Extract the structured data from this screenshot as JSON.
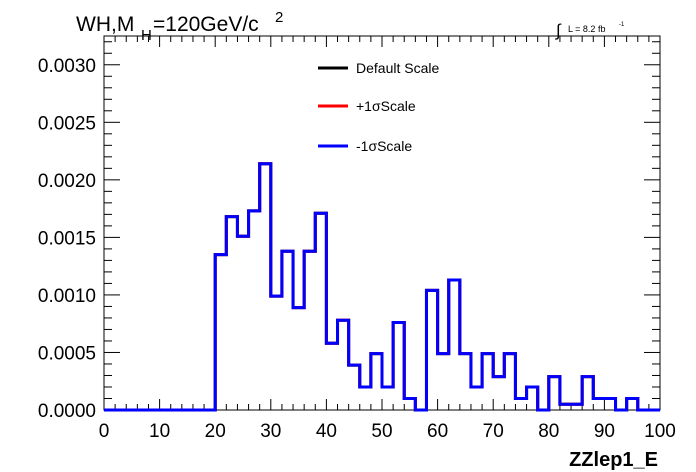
{
  "chart_data": {
    "type": "line",
    "title": {
      "main": "WH,M",
      "sub": "H",
      "rest": "=120GeV/c",
      "sup": "2"
    },
    "lumi": {
      "integral": "∫",
      "text": "L = 8.2 fb",
      "sup": "-1"
    },
    "xlabel": "ZZlep1_E",
    "xlim": [
      0,
      100
    ],
    "ylim": [
      0,
      0.00325
    ],
    "x_ticks": [
      "0",
      "10",
      "20",
      "30",
      "40",
      "50",
      "60",
      "70",
      "80",
      "90",
      "100"
    ],
    "y_ticks": [
      "0.0000",
      "0.0005",
      "0.0010",
      "0.0015",
      "0.0020",
      "0.0025",
      "0.0030"
    ],
    "bin_width": 2,
    "series": [
      {
        "name": "Default Scale",
        "color": "#000000"
      },
      {
        "name": "+1σScale",
        "color": "#ff0000"
      },
      {
        "name": "-1σScale",
        "color": "#0000ff"
      }
    ],
    "x": [
      0,
      2,
      4,
      6,
      8,
      10,
      12,
      14,
      16,
      18,
      20,
      22,
      24,
      26,
      28,
      30,
      32,
      34,
      36,
      38,
      40,
      42,
      44,
      46,
      48,
      50,
      52,
      54,
      56,
      58,
      60,
      62,
      64,
      66,
      68,
      70,
      72,
      74,
      76,
      78,
      80,
      82,
      84,
      86,
      88,
      90,
      92,
      94,
      96,
      98
    ],
    "values": [
      0,
      0,
      0,
      0,
      0,
      0,
      0,
      0,
      0,
      0,
      0.00135,
      0.00168,
      0.00151,
      0.00173,
      0.00214,
      0.00099,
      0.00138,
      0.00089,
      0.00138,
      0.00171,
      0.00058,
      0.00078,
      0.00039,
      0.0002,
      0.00049,
      0.0002,
      0.00076,
      0.0001,
      0.0,
      0.00104,
      0.00049,
      0.00113,
      0.00049,
      0.0002,
      0.00049,
      0.00029,
      0.00049,
      0.0001,
      0.0002,
      0.0,
      0.00029,
      5e-05,
      5e-05,
      0.00029,
      0.0001,
      0.0001,
      0.0,
      0.0001,
      0.0,
      0.0
    ]
  }
}
